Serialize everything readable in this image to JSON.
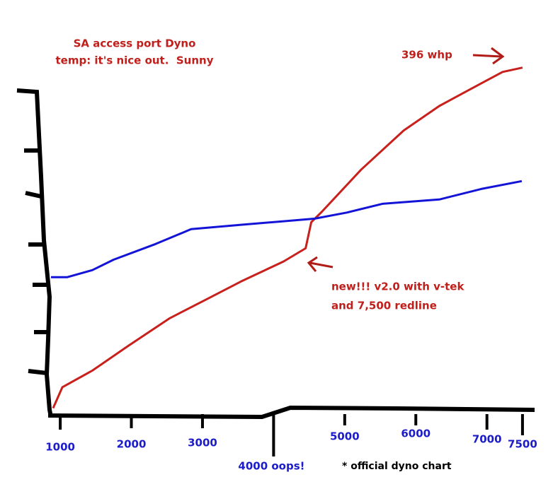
{
  "chart_data": {
    "type": "line",
    "title": "SA access port Dyno",
    "subtitle": "temp: it's nice out.  Sunny",
    "xlim": [
      800,
      7700
    ],
    "ylim": [
      0,
      420
    ],
    "xticks": [
      1000,
      2000,
      3000,
      {
        "value": 4000,
        "label": "4000 oops!"
      },
      5000,
      6000,
      7000,
      7500
    ],
    "annotations": [
      "396 whp",
      "new!!! v2.0 with v-tek",
      "and 7,500 redline",
      "* official dyno chart"
    ],
    "series": [
      {
        "color": "#c8201c",
        "x": [
          900,
          1030,
          1450,
          1950,
          2540,
          3040,
          3540,
          4140,
          4450,
          4530,
          4680,
          5230,
          5830,
          6330,
          6920,
          7220,
          7500
        ],
        "values": [
          6,
          30,
          49,
          77,
          109,
          130,
          151,
          174,
          189,
          219,
          231,
          279,
          324,
          352,
          378,
          391,
          396
        ]
      },
      {
        "color": "#1414d8",
        "x": [
          870,
          1100,
          1450,
          1750,
          2340,
          2840,
          3540,
          4140,
          4580,
          5030,
          5530,
          6330,
          6920,
          7490
        ],
        "values": [
          156,
          156,
          164,
          176,
          194,
          211,
          216,
          220,
          223,
          230,
          240,
          245,
          257,
          266
        ]
      }
    ]
  }
}
